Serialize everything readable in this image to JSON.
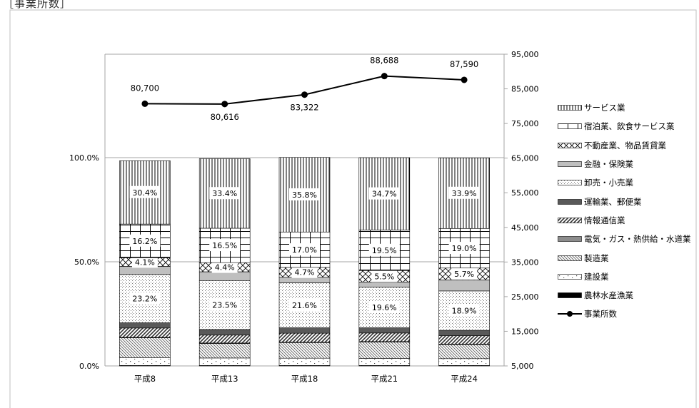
{
  "chart_data": {
    "type": "bar",
    "title": "［事業所数］",
    "categories": [
      "平成8",
      "平成13",
      "平成18",
      "平成21",
      "平成24"
    ],
    "left_axis": {
      "ticks": [
        "0.0%",
        "50.0%",
        "100.0%"
      ],
      "range": [
        0,
        100
      ]
    },
    "right_axis": {
      "ticks": [
        "5,000",
        "15,000",
        "25,000",
        "35,000",
        "45,000",
        "55,000",
        "65,000",
        "75,000",
        "85,000",
        "95,000"
      ],
      "range": [
        5000,
        95000
      ]
    },
    "series": [
      {
        "name": "農林水産漁業",
        "pattern": "solid-black",
        "values": [
          0.2,
          0.2,
          0.2,
          0.2,
          0.2
        ]
      },
      {
        "name": "建設業",
        "pattern": "dots-sparse",
        "values": [
          3.8,
          3.6,
          3.5,
          3.4,
          3.3
        ]
      },
      {
        "name": "製造業",
        "pattern": "diag-thin",
        "values": [
          9.5,
          7.0,
          7.5,
          7.9,
          6.8
        ]
      },
      {
        "name": "電気・ガス・熱供給・水道業",
        "pattern": "solid-gray",
        "values": [
          0.2,
          0.2,
          0.2,
          0.2,
          0.2
        ]
      },
      {
        "name": "情報通信業",
        "pattern": "diag-thick",
        "values": [
          4.5,
          3.8,
          4.3,
          4.1,
          4.0
        ]
      },
      {
        "name": "運輸業、郵便業",
        "pattern": "solid-darkgray",
        "values": [
          2.5,
          2.7,
          2.6,
          2.5,
          2.6
        ]
      },
      {
        "name": "卸売・小売業",
        "pattern": "dots-dense",
        "values": [
          23.2,
          23.5,
          21.6,
          19.6,
          18.9
        ]
      },
      {
        "name": "金融・保険業",
        "pattern": "solid-lightgray",
        "values": [
          3.9,
          4.2,
          2.7,
          2.4,
          5.3
        ]
      },
      {
        "name": "不動産業、物品賃貸業",
        "pattern": "crosshatch",
        "values": [
          4.1,
          4.4,
          4.7,
          5.5,
          5.7
        ]
      },
      {
        "name": "宿泊業、飲食サービス業",
        "pattern": "grid",
        "values": [
          16.2,
          16.5,
          17.0,
          19.5,
          19.0
        ]
      },
      {
        "name": "サービス業",
        "pattern": "vertical-lines",
        "values": [
          30.4,
          33.4,
          35.8,
          34.7,
          33.9
        ]
      }
    ],
    "line_series": {
      "name": "事業所数",
      "values": [
        80700,
        80616,
        83322,
        88688,
        87590
      ],
      "labels": [
        "80,700",
        "80,616",
        "83,322",
        "88,688",
        "87,590"
      ]
    },
    "bar_labels": {
      "卸売・小売業": [
        "23.2%",
        "23.5%",
        "21.6%",
        "19.6%",
        "18.9%"
      ],
      "不動産業、物品賃貸業": [
        "4.1%",
        "4.4%",
        "4.7%",
        "5.5%",
        "5.7%"
      ],
      "宿泊業、飲食サービス業": [
        "16.2%",
        "16.5%",
        "17.0%",
        "19.5%",
        "19.0%"
      ],
      "サービス業": [
        "30.4%",
        "33.4%",
        "35.8%",
        "34.7%",
        "33.9%"
      ]
    },
    "legend": {
      "placement": "right",
      "order": [
        "サービス業",
        "宿泊業、飲食サービス業",
        "不動産業、物品賃貸業",
        "金融・保険業",
        "卸売・小売業",
        "運輸業、郵便業",
        "情報通信業",
        "電気・ガス・熱供給・水道業",
        "製造業",
        "建設業",
        "農林水産漁業",
        "事業所数"
      ]
    },
    "grid": true
  }
}
